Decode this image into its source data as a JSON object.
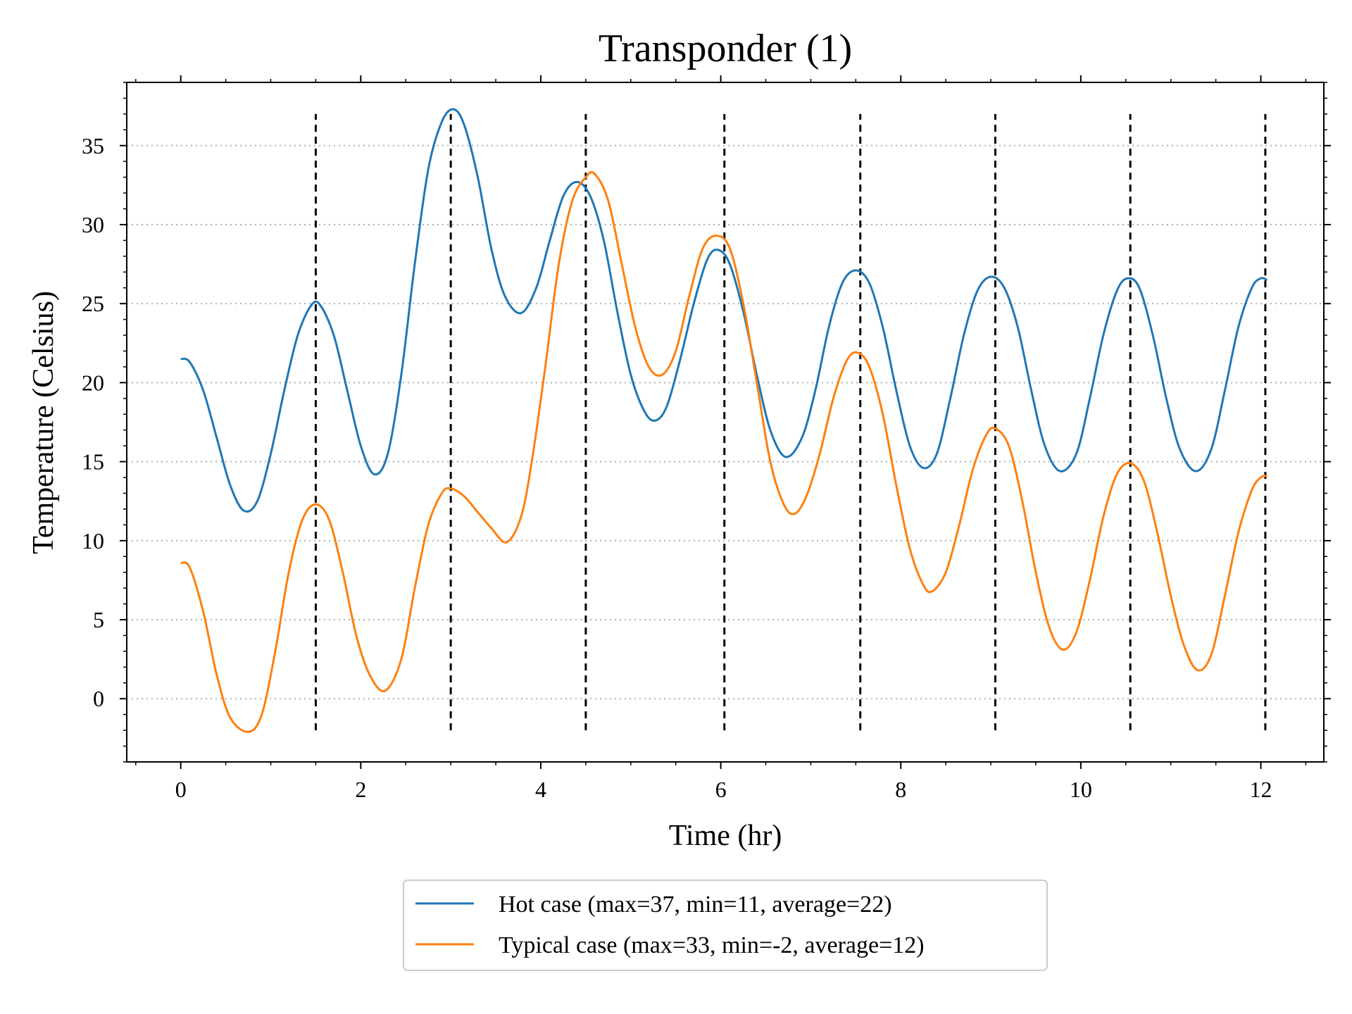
{
  "chart_data": {
    "type": "line",
    "title": "Transponder (1)",
    "xlabel": "Time (hr)",
    "ylabel": "Temperature (Celsius)",
    "xlim": [
      -0.6,
      12.7
    ],
    "ylim": [
      -4.0,
      39.0
    ],
    "xticks": [
      0,
      2,
      4,
      6,
      8,
      10,
      12
    ],
    "yticks": [
      0,
      5,
      10,
      15,
      20,
      25,
      30,
      35
    ],
    "grid": "horizontal dotted",
    "legend_placement": "below",
    "vlines": {
      "x": [
        1.5,
        3.0,
        4.5,
        6.04,
        7.55,
        9.05,
        10.55,
        12.05
      ],
      "ymin": -2.0,
      "ymax": 37.0,
      "style": "dashed",
      "color": "#000000"
    },
    "series": [
      {
        "name": "Hot case (max=37, min=11, average=22)",
        "color": "#1f77b4",
        "points": [
          [
            0.0,
            21.5
          ],
          [
            0.1,
            21.3
          ],
          [
            0.25,
            19.5
          ],
          [
            0.4,
            16.5
          ],
          [
            0.55,
            13.5
          ],
          [
            0.7,
            11.9
          ],
          [
            0.85,
            12.5
          ],
          [
            1.0,
            15.5
          ],
          [
            1.15,
            19.5
          ],
          [
            1.3,
            23.0
          ],
          [
            1.45,
            24.9
          ],
          [
            1.55,
            24.9
          ],
          [
            1.7,
            23.0
          ],
          [
            1.85,
            19.5
          ],
          [
            2.0,
            16.0
          ],
          [
            2.15,
            14.2
          ],
          [
            2.3,
            15.5
          ],
          [
            2.45,
            20.5
          ],
          [
            2.6,
            27.5
          ],
          [
            2.75,
            33.5
          ],
          [
            2.9,
            36.5
          ],
          [
            3.03,
            37.3
          ],
          [
            3.15,
            36.3
          ],
          [
            3.3,
            33.0
          ],
          [
            3.45,
            28.5
          ],
          [
            3.6,
            25.5
          ],
          [
            3.78,
            24.4
          ],
          [
            3.95,
            26.0
          ],
          [
            4.1,
            29.0
          ],
          [
            4.25,
            31.8
          ],
          [
            4.4,
            32.7
          ],
          [
            4.55,
            31.8
          ],
          [
            4.7,
            29.0
          ],
          [
            4.85,
            24.5
          ],
          [
            5.0,
            20.5
          ],
          [
            5.15,
            18.2
          ],
          [
            5.27,
            17.6
          ],
          [
            5.4,
            18.5
          ],
          [
            5.55,
            21.5
          ],
          [
            5.7,
            25.0
          ],
          [
            5.85,
            27.8
          ],
          [
            5.97,
            28.4
          ],
          [
            6.1,
            27.5
          ],
          [
            6.25,
            24.5
          ],
          [
            6.4,
            20.5
          ],
          [
            6.55,
            17.0
          ],
          [
            6.72,
            15.3
          ],
          [
            6.9,
            16.5
          ],
          [
            7.05,
            19.5
          ],
          [
            7.2,
            23.5
          ],
          [
            7.35,
            26.3
          ],
          [
            7.5,
            27.1
          ],
          [
            7.65,
            26.3
          ],
          [
            7.8,
            23.5
          ],
          [
            7.95,
            19.5
          ],
          [
            8.1,
            16.0
          ],
          [
            8.25,
            14.6
          ],
          [
            8.4,
            15.5
          ],
          [
            8.55,
            19.0
          ],
          [
            8.7,
            23.0
          ],
          [
            8.85,
            25.8
          ],
          [
            9.0,
            26.7
          ],
          [
            9.15,
            26.0
          ],
          [
            9.3,
            23.5
          ],
          [
            9.45,
            19.5
          ],
          [
            9.6,
            16.0
          ],
          [
            9.77,
            14.4
          ],
          [
            9.95,
            15.5
          ],
          [
            10.1,
            19.0
          ],
          [
            10.25,
            23.0
          ],
          [
            10.4,
            25.8
          ],
          [
            10.52,
            26.6
          ],
          [
            10.65,
            26.0
          ],
          [
            10.8,
            23.0
          ],
          [
            10.95,
            19.0
          ],
          [
            11.1,
            15.8
          ],
          [
            11.28,
            14.4
          ],
          [
            11.45,
            15.8
          ],
          [
            11.6,
            19.5
          ],
          [
            11.75,
            23.5
          ],
          [
            11.9,
            26.0
          ],
          [
            12.0,
            26.6
          ],
          [
            12.07,
            26.5
          ]
        ]
      },
      {
        "name": "Typical case (max=33, min=-2, average=12)",
        "color": "#ff7f0e",
        "points": [
          [
            0.0,
            8.6
          ],
          [
            0.1,
            8.3
          ],
          [
            0.25,
            5.5
          ],
          [
            0.4,
            1.5
          ],
          [
            0.55,
            -1.2
          ],
          [
            0.75,
            -2.1
          ],
          [
            0.9,
            -1.0
          ],
          [
            1.05,
            3.0
          ],
          [
            1.2,
            8.0
          ],
          [
            1.35,
            11.3
          ],
          [
            1.5,
            12.3
          ],
          [
            1.65,
            11.3
          ],
          [
            1.8,
            8.0
          ],
          [
            1.95,
            4.0
          ],
          [
            2.1,
            1.5
          ],
          [
            2.27,
            0.5
          ],
          [
            2.45,
            2.5
          ],
          [
            2.6,
            7.0
          ],
          [
            2.75,
            11.0
          ],
          [
            2.9,
            13.0
          ],
          [
            3.0,
            13.3
          ],
          [
            3.15,
            12.8
          ],
          [
            3.3,
            11.8
          ],
          [
            3.45,
            10.8
          ],
          [
            3.62,
            9.9
          ],
          [
            3.78,
            11.5
          ],
          [
            3.9,
            15.0
          ],
          [
            4.05,
            21.0
          ],
          [
            4.2,
            27.5
          ],
          [
            4.35,
            31.5
          ],
          [
            4.5,
            33.0
          ],
          [
            4.6,
            33.2
          ],
          [
            4.75,
            31.5
          ],
          [
            4.9,
            27.5
          ],
          [
            5.05,
            23.5
          ],
          [
            5.2,
            21.0
          ],
          [
            5.35,
            20.5
          ],
          [
            5.5,
            22.0
          ],
          [
            5.65,
            25.5
          ],
          [
            5.8,
            28.5
          ],
          [
            5.95,
            29.3
          ],
          [
            6.1,
            28.5
          ],
          [
            6.25,
            25.0
          ],
          [
            6.4,
            20.0
          ],
          [
            6.55,
            15.0
          ],
          [
            6.7,
            12.3
          ],
          [
            6.82,
            11.7
          ],
          [
            6.95,
            12.8
          ],
          [
            7.1,
            15.5
          ],
          [
            7.25,
            19.0
          ],
          [
            7.4,
            21.4
          ],
          [
            7.52,
            21.9
          ],
          [
            7.65,
            21.0
          ],
          [
            7.8,
            18.0
          ],
          [
            7.95,
            13.5
          ],
          [
            8.1,
            9.5
          ],
          [
            8.25,
            7.2
          ],
          [
            8.35,
            6.8
          ],
          [
            8.5,
            8.0
          ],
          [
            8.65,
            11.0
          ],
          [
            8.8,
            14.5
          ],
          [
            8.95,
            16.7
          ],
          [
            9.05,
            17.1
          ],
          [
            9.2,
            16.0
          ],
          [
            9.35,
            12.5
          ],
          [
            9.5,
            8.0
          ],
          [
            9.65,
            4.5
          ],
          [
            9.8,
            3.1
          ],
          [
            9.95,
            4.2
          ],
          [
            10.1,
            7.5
          ],
          [
            10.25,
            11.5
          ],
          [
            10.4,
            14.2
          ],
          [
            10.55,
            14.9
          ],
          [
            10.7,
            13.8
          ],
          [
            10.85,
            10.5
          ],
          [
            11.0,
            6.5
          ],
          [
            11.15,
            3.3
          ],
          [
            11.3,
            1.8
          ],
          [
            11.45,
            2.8
          ],
          [
            11.6,
            6.5
          ],
          [
            11.75,
            10.5
          ],
          [
            11.9,
            13.2
          ],
          [
            12.0,
            14.0
          ],
          [
            12.07,
            14.1
          ]
        ]
      }
    ]
  }
}
